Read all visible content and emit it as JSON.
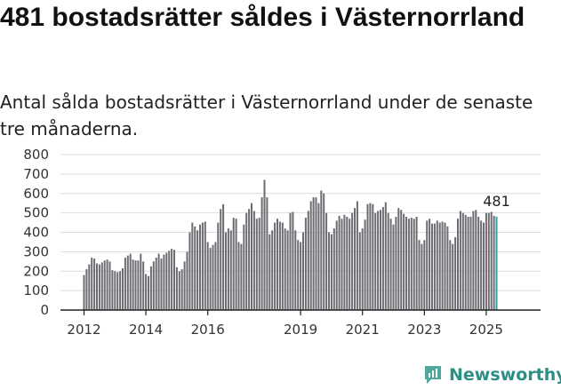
{
  "title": "481 bostadsrätter såldes i Västernorrland",
  "subtitle": "Antal sålda bostadsrätter i Västernorrland under de senaste tre månaderna.",
  "brand": {
    "name": "Newsworthy",
    "icon": "newsworthy-logo-icon"
  },
  "colors": {
    "bar": "#6e6c72",
    "highlight": "#2ba39a",
    "grid": "#dddddd",
    "brand": "#2c8f86"
  },
  "chart_data": {
    "type": "bar",
    "x_start": "2012-01",
    "y_ticks": [
      0,
      100,
      200,
      300,
      400,
      500,
      600,
      700,
      800
    ],
    "ylim": [
      0,
      800
    ],
    "grid": true,
    "x_tick_labels": [
      {
        "label": "2012",
        "month": "2012-01"
      },
      {
        "label": "2014",
        "month": "2014-01"
      },
      {
        "label": "2016",
        "month": "2016-01"
      },
      {
        "label": "2019",
        "month": "2019-01"
      },
      {
        "label": "2021",
        "month": "2021-01"
      },
      {
        "label": "2023",
        "month": "2023-01"
      },
      {
        "label": "2025",
        "month": "2025-01"
      }
    ],
    "last_value_label": "481",
    "values": [
      180,
      210,
      235,
      270,
      265,
      240,
      235,
      245,
      255,
      260,
      250,
      205,
      200,
      195,
      200,
      215,
      270,
      280,
      290,
      260,
      255,
      255,
      290,
      250,
      185,
      175,
      225,
      250,
      270,
      290,
      265,
      285,
      295,
      305,
      315,
      310,
      220,
      200,
      210,
      250,
      300,
      400,
      450,
      430,
      410,
      440,
      450,
      455,
      350,
      320,
      335,
      350,
      450,
      520,
      545,
      400,
      420,
      410,
      475,
      470,
      350,
      340,
      440,
      500,
      520,
      550,
      510,
      470,
      475,
      580,
      670,
      580,
      390,
      410,
      450,
      470,
      455,
      450,
      420,
      410,
      500,
      505,
      410,
      360,
      350,
      400,
      475,
      510,
      560,
      580,
      580,
      550,
      615,
      600,
      500,
      400,
      390,
      420,
      460,
      485,
      470,
      490,
      480,
      470,
      500,
      525,
      560,
      400,
      420,
      465,
      545,
      550,
      545,
      500,
      510,
      515,
      530,
      555,
      500,
      470,
      440,
      480,
      525,
      515,
      495,
      480,
      470,
      475,
      470,
      480,
      360,
      340,
      360,
      460,
      470,
      445,
      445,
      460,
      450,
      455,
      450,
      430,
      360,
      340,
      375,
      470,
      510,
      500,
      490,
      480,
      480,
      510,
      515,
      480,
      460,
      450,
      500,
      500,
      505,
      485,
      481
    ]
  }
}
